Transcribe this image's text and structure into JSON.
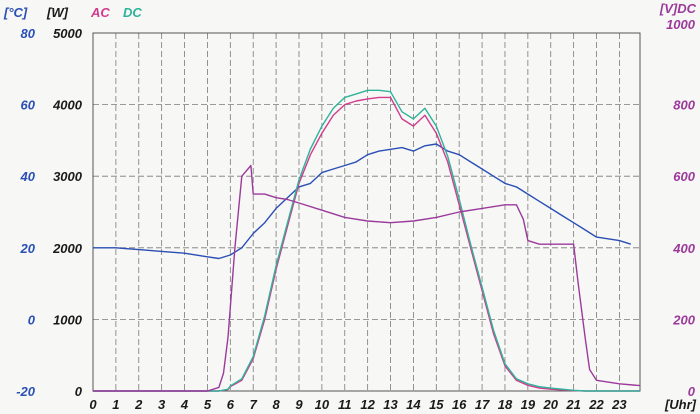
{
  "chart_data": {
    "type": "line",
    "colors": {
      "blue": "#2a4fb5",
      "ac": "#d13c8e",
      "dc": "#2fb39a",
      "voltage": "#9b3a9b",
      "grid": "#7a7a7a",
      "background": "#f7f7f5"
    },
    "axes": {
      "x": {
        "unit_label": "[Uhr]",
        "ticks": [
          "0",
          "1",
          "2",
          "3",
          "4",
          "5",
          "6",
          "7",
          "8",
          "9",
          "10",
          "11",
          "12",
          "13",
          "14",
          "15",
          "16",
          "17",
          "18",
          "19",
          "20",
          "21",
          "22",
          "23"
        ],
        "range": [
          0,
          23.9
        ]
      },
      "y_temp": {
        "unit_label": "[°C]",
        "ticks": [
          "80",
          "60",
          "40",
          "20",
          "0",
          "-20"
        ],
        "range": [
          -20,
          80
        ]
      },
      "y_power": {
        "unit_label": "[W]",
        "ticks": [
          "5000",
          "4000",
          "3000",
          "2000",
          "1000",
          "0"
        ],
        "range": [
          0,
          5000
        ]
      },
      "y_voltage": {
        "unit_label": "[V]DC",
        "ticks": [
          "1000",
          "800",
          "600",
          "400",
          "200",
          "0"
        ],
        "range": [
          0,
          1000
        ]
      }
    },
    "legend": [
      {
        "label": "AC",
        "color": "#d13c8e"
      },
      {
        "label": "DC",
        "color": "#2fb39a"
      }
    ],
    "series": [
      {
        "key": "temperature",
        "axis": "y_temp",
        "color": "#2a4fb5",
        "x": [
          0,
          0.5,
          1,
          2,
          3,
          4,
          5,
          5.5,
          6,
          6.5,
          7,
          7.5,
          8,
          9,
          9.5,
          10,
          10.5,
          11,
          11.5,
          12,
          12.5,
          13,
          13.5,
          14,
          14.5,
          15,
          15.5,
          16,
          16.5,
          17,
          17.5,
          18,
          18.5,
          19,
          19.5,
          20,
          20.5,
          21,
          21.5,
          22,
          23,
          23.5
        ],
        "y": [
          20,
          20,
          20,
          19.5,
          19,
          18.5,
          17.5,
          17,
          18,
          20,
          24,
          27,
          31,
          37,
          38,
          41,
          42,
          43,
          44,
          46,
          47,
          47.5,
          48,
          47,
          48.5,
          49,
          47,
          46,
          44,
          42,
          40,
          38,
          37,
          35,
          33,
          31,
          29,
          27,
          25,
          23,
          22,
          21
        ]
      },
      {
        "key": "ac_power",
        "axis": "y_power",
        "color": "#d13c8e",
        "x": [
          0,
          5,
          5.5,
          5.9,
          6,
          6.5,
          7,
          7.5,
          8,
          8.5,
          9,
          9.5,
          10,
          10.5,
          11,
          11.5,
          12,
          12.5,
          13,
          13.5,
          14,
          14.5,
          15,
          15.5,
          16,
          16.5,
          17,
          17.5,
          18,
          18.5,
          19,
          19.5,
          20,
          20.5,
          21,
          21.5,
          22,
          23.9
        ],
        "y": [
          0,
          0,
          0,
          20,
          60,
          150,
          450,
          1000,
          1700,
          2300,
          2900,
          3300,
          3600,
          3850,
          4000,
          4050,
          4080,
          4100,
          4100,
          3800,
          3700,
          3850,
          3600,
          3200,
          2600,
          2000,
          1400,
          800,
          350,
          150,
          80,
          40,
          25,
          15,
          5,
          0,
          0,
          0
        ]
      },
      {
        "key": "dc_power",
        "axis": "y_power",
        "color": "#2fb39a",
        "x": [
          0,
          5,
          5.5,
          5.9,
          6,
          6.5,
          7,
          7.5,
          8,
          8.5,
          9,
          9.5,
          10,
          10.5,
          11,
          11.5,
          12,
          12.5,
          13,
          13.5,
          14,
          14.5,
          15,
          15.5,
          16,
          16.5,
          17,
          17.5,
          18,
          18.5,
          19,
          19.5,
          20,
          20.5,
          21,
          21.5,
          22,
          23.9
        ],
        "y": [
          0,
          0,
          0,
          25,
          70,
          170,
          480,
          1050,
          1750,
          2350,
          2950,
          3380,
          3700,
          3950,
          4100,
          4150,
          4200,
          4200,
          4180,
          3900,
          3800,
          3950,
          3700,
          3280,
          2680,
          2050,
          1450,
          850,
          380,
          170,
          100,
          60,
          40,
          25,
          10,
          0,
          0,
          0
        ]
      },
      {
        "key": "dc_voltage",
        "axis": "y_voltage",
        "color": "#9b3a9b",
        "x": [
          0,
          5,
          5.5,
          5.7,
          5.9,
          6.2,
          6.5,
          6.9,
          7,
          7.5,
          8,
          8.5,
          9,
          10,
          11,
          12,
          13,
          14,
          15,
          16,
          17,
          18,
          18.5,
          18.8,
          19,
          19.5,
          20,
          20.5,
          21,
          21.2,
          21.5,
          21.7,
          22,
          23,
          23.9
        ],
        "y": [
          0,
          0,
          10,
          50,
          150,
          400,
          600,
          630,
          550,
          550,
          540,
          535,
          525,
          505,
          485,
          475,
          470,
          475,
          485,
          500,
          510,
          520,
          520,
          480,
          420,
          410,
          410,
          410,
          410,
          300,
          150,
          60,
          30,
          20,
          15
        ]
      }
    ],
    "title": "",
    "grid": true
  }
}
